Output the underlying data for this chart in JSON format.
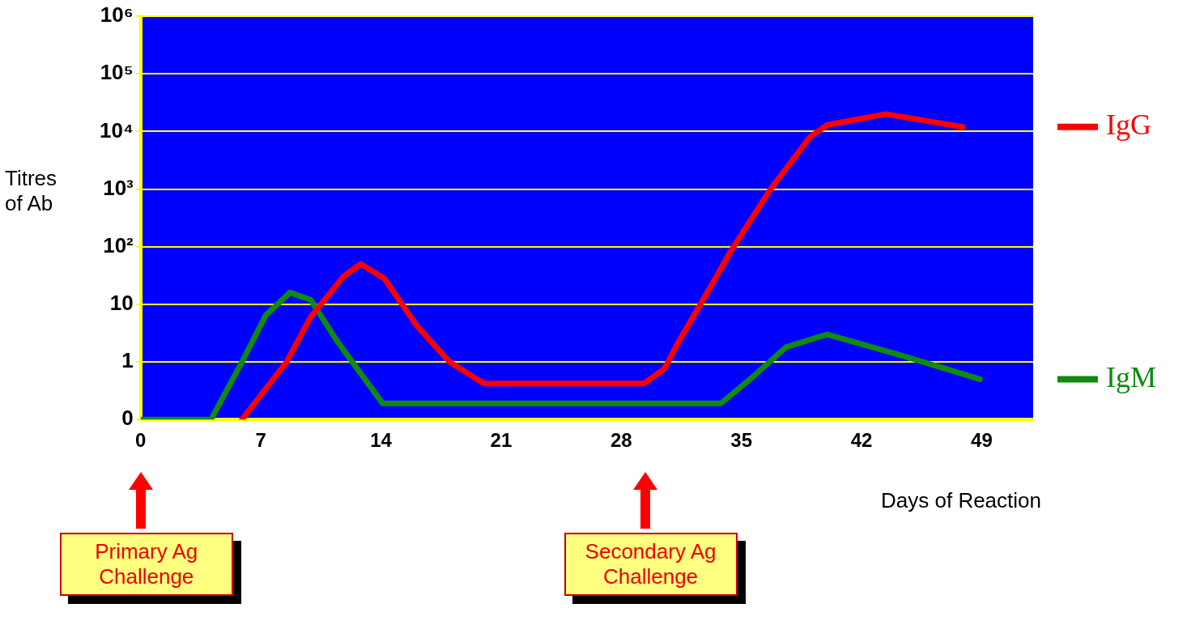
{
  "chart_data": {
    "type": "line",
    "xlabel": "Days of Reaction",
    "ylabel": "Titres of Ab",
    "log": "y",
    "grid": "y",
    "legend": "right",
    "marker": "none",
    "line_style": "solid",
    "xlim": [
      0,
      52
    ],
    "xticks": [
      0,
      7,
      14,
      21,
      28,
      35,
      42,
      49
    ],
    "ylim": [
      0.1,
      1000000
    ],
    "yticks": [
      {
        "value": 0.1,
        "label": "0"
      },
      1,
      10,
      {
        "value": 100,
        "label": "10²"
      },
      {
        "value": 1000,
        "label": "10³"
      },
      {
        "value": 10000,
        "label": "10⁴"
      },
      {
        "value": 100000,
        "label": "10⁵"
      },
      {
        "value": 1000000,
        "label": "10⁶"
      }
    ],
    "series": [
      {
        "name": "IgG",
        "color": "#ff0000",
        "x": [
          5.9,
          8.5,
          9.9,
          11.8,
          12.8,
          14.2,
          16.1,
          18,
          20,
          29.3,
          30.5,
          31.4,
          32.9,
          34.3,
          36.7,
          39,
          40,
          43.4,
          47.9
        ],
        "values": [
          0.1,
          1,
          6,
          30,
          50,
          28,
          4.2,
          1,
          0.42,
          0.42,
          0.75,
          2.4,
          14,
          76,
          1000,
          8000,
          13000,
          20000,
          12000
        ]
      },
      {
        "name": "IgM",
        "color": "#108a10",
        "x": [
          0,
          4.1,
          5.9,
          7.3,
          8.7,
          9.9,
          11.4,
          14.1,
          33.8,
          35.7,
          37.6,
          40,
          44.3,
          48.9
        ],
        "values": [
          0.1,
          0.1,
          1,
          6.5,
          16,
          12,
          2.4,
          0.19,
          0.19,
          0.56,
          1.8,
          3,
          1.3,
          0.5
        ]
      }
    ],
    "annotations": [
      "Primary Ag Challenge",
      "Secondary Ag Challenge"
    ]
  }
}
